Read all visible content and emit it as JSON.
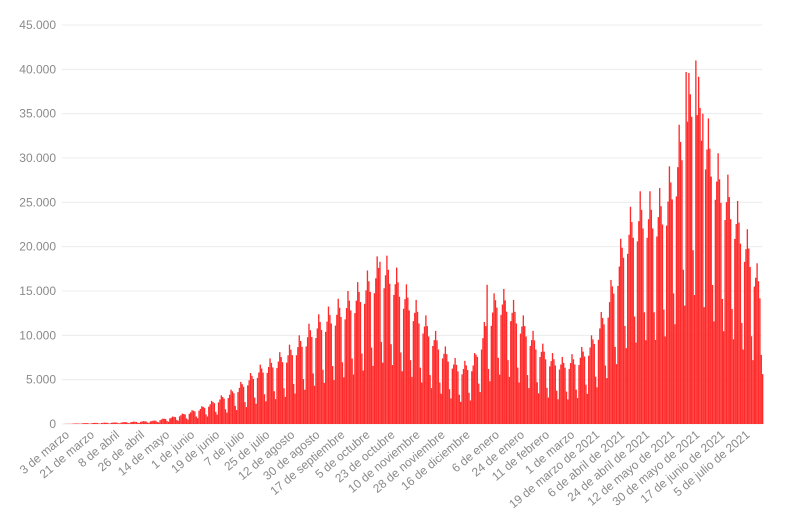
{
  "chart_data": {
    "type": "bar",
    "title": "",
    "xlabel": "",
    "ylabel": "",
    "ylim": [
      0,
      45000
    ],
    "grid": "horizontal",
    "legend": "none",
    "bar_color": "#ff2a2a",
    "yticks": [
      {
        "value": 0,
        "label": "0"
      },
      {
        "value": 5000,
        "label": "5.000"
      },
      {
        "value": 10000,
        "label": "10.000"
      },
      {
        "value": 15000,
        "label": "15.000"
      },
      {
        "value": 20000,
        "label": "20.000"
      },
      {
        "value": 25000,
        "label": "25.000"
      },
      {
        "value": 30000,
        "label": "30.000"
      },
      {
        "value": 35000,
        "label": "35.000"
      },
      {
        "value": 40000,
        "label": "40.000"
      },
      {
        "value": 45000,
        "label": "45.000"
      }
    ],
    "xticks": [
      {
        "day": 0,
        "label": "3 de marzo"
      },
      {
        "day": 18,
        "label": "21 de marzo"
      },
      {
        "day": 36,
        "label": "8 de abril"
      },
      {
        "day": 54,
        "label": "26 de abril"
      },
      {
        "day": 72,
        "label": "14 de mayo"
      },
      {
        "day": 90,
        "label": "1 de junio"
      },
      {
        "day": 108,
        "label": "19 de junio"
      },
      {
        "day": 126,
        "label": "7 de julio"
      },
      {
        "day": 144,
        "label": "25 de julio"
      },
      {
        "day": 162,
        "label": "12 de agosto"
      },
      {
        "day": 180,
        "label": "30 de agosto"
      },
      {
        "day": 198,
        "label": "17 de septiembre"
      },
      {
        "day": 216,
        "label": "5 de octubre"
      },
      {
        "day": 234,
        "label": "23 de octubre"
      },
      {
        "day": 252,
        "label": "10 de noviembre"
      },
      {
        "day": 270,
        "label": "28 de noviembre"
      },
      {
        "day": 288,
        "label": "16 de diciembre"
      },
      {
        "day": 309,
        "label": "6 de enero"
      },
      {
        "day": 327,
        "label": "24 de enero"
      },
      {
        "day": 345,
        "label": "11 de febrero"
      },
      {
        "day": 363,
        "label": "1 de marzo"
      },
      {
        "day": 381,
        "label": "19 de marzo de 2021"
      },
      {
        "day": 399,
        "label": "6 de abril de 2021"
      },
      {
        "day": 417,
        "label": "24 de abril de 2021"
      },
      {
        "day": 435,
        "label": "12 de mayo de 2021"
      },
      {
        "day": 453,
        "label": "30 de mayo de 2021"
      },
      {
        "day": 471,
        "label": "17 de junio de 2021"
      },
      {
        "day": 489,
        "label": "5 de julio de 2021"
      }
    ],
    "days_total": 503,
    "trend_points": [
      [
        0,
        0
      ],
      [
        15,
        80
      ],
      [
        40,
        150
      ],
      [
        65,
        300
      ],
      [
        80,
        700
      ],
      [
        90,
        1100
      ],
      [
        100,
        1600
      ],
      [
        110,
        2300
      ],
      [
        120,
        3000
      ],
      [
        130,
        4000
      ],
      [
        140,
        5200
      ],
      [
        150,
        6000
      ],
      [
        160,
        6800
      ],
      [
        170,
        8000
      ],
      [
        180,
        9500
      ],
      [
        190,
        10500
      ],
      [
        200,
        11500
      ],
      [
        210,
        12500
      ],
      [
        220,
        14000
      ],
      [
        228,
        15500
      ],
      [
        236,
        15000
      ],
      [
        245,
        13000
      ],
      [
        255,
        11000
      ],
      [
        265,
        9000
      ],
      [
        275,
        7000
      ],
      [
        285,
        5500
      ],
      [
        295,
        6000
      ],
      [
        305,
        10000
      ],
      [
        312,
        12500
      ],
      [
        320,
        12000
      ],
      [
        330,
        10000
      ],
      [
        340,
        8000
      ],
      [
        350,
        6500
      ],
      [
        360,
        6000
      ],
      [
        370,
        6500
      ],
      [
        380,
        8000
      ],
      [
        390,
        11000
      ],
      [
        398,
        15000
      ],
      [
        405,
        19000
      ],
      [
        415,
        21000
      ],
      [
        425,
        21000
      ],
      [
        432,
        21500
      ],
      [
        440,
        25000
      ],
      [
        446,
        29000
      ],
      [
        452,
        33000
      ],
      [
        458,
        31000
      ],
      [
        465,
        27000
      ],
      [
        472,
        24000
      ],
      [
        480,
        22000
      ],
      [
        488,
        19000
      ],
      [
        495,
        16500
      ],
      [
        503,
        12500
      ]
    ],
    "weekly_pattern": [
      1.0,
      1.1,
      1.25,
      1.15,
      1.05,
      0.6,
      0.45
    ],
    "peaks": [
      {
        "day": 228,
        "value": 18300
      },
      {
        "day": 305,
        "value": 15700
      },
      {
        "day": 448,
        "value": 39700
      },
      {
        "day": 455,
        "value": 41000
      },
      {
        "day": 460,
        "value": 35000
      }
    ]
  }
}
